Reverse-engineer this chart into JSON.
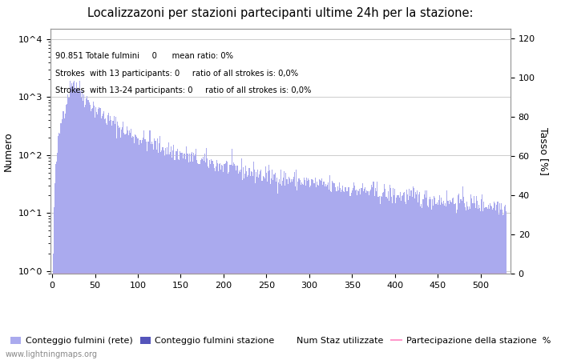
{
  "title": "Localizzazoni per stazioni partecipanti ultime 24h per la stazione:",
  "ylabel_left": "Numero",
  "ylabel_right": "Tasso [%]",
  "annotation_line1": "90.851 Totale fulmini     0      mean ratio: 0%",
  "annotation_line2": "Strokes  with 13 participants: 0     ratio of all strokes is: 0,0%",
  "annotation_line3": "Strokes  with 13-24 participants: 0     ratio of all strokes is: 0,0%",
  "legend_label1": "Conteggio fulmini (rete)",
  "legend_label2": "Conteggio fulmini stazione",
  "legend_label3": "Num Staz utilizzate",
  "legend_label4": "Partecipazione della stazione  %",
  "bar_color_light": "#aaaaee",
  "bar_color_dark": "#5555bb",
  "line_color": "#ff99cc",
  "watermark": "www.lightningmaps.org",
  "n_stations": 530,
  "right_yticks": [
    0,
    20,
    40,
    60,
    80,
    100,
    120
  ],
  "background_color": "#ffffff",
  "grid_color": "#cccccc",
  "xtick_vals": [
    0,
    50,
    100,
    150,
    200,
    250,
    300,
    350,
    400,
    450,
    500
  ]
}
